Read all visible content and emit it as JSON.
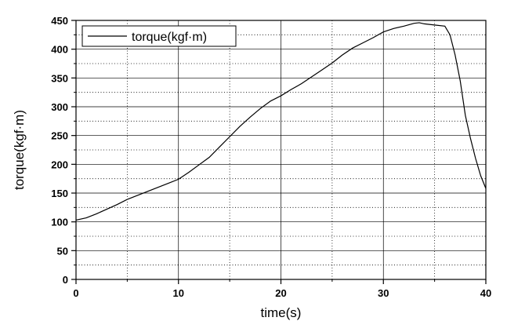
{
  "chart_data": {
    "type": "line",
    "xlabel": "time(s)",
    "ylabel": "torque(kgf·m)",
    "xlim": [
      0,
      40
    ],
    "ylim": [
      0,
      450
    ],
    "xticks": [
      0,
      10,
      20,
      30,
      40
    ],
    "yticks": [
      0,
      50,
      100,
      150,
      200,
      250,
      300,
      350,
      400,
      450
    ],
    "x_minor_ticks": [
      5,
      15,
      25,
      35
    ],
    "y_minor_ticks": [
      25,
      75,
      125,
      175,
      225,
      275,
      325,
      375,
      425
    ],
    "grid": {
      "major": "solid",
      "minor": "dotted"
    },
    "legend": {
      "position": "top-left"
    },
    "colors": {
      "line": "#000000",
      "major_grid": "#000000",
      "minor_grid": "#000000",
      "background": "#ffffff"
    },
    "series": [
      {
        "name": "torque(kgf·m)",
        "x": [
          0,
          1,
          2,
          3,
          4,
          5,
          6,
          7,
          8,
          9,
          10,
          11,
          12,
          13,
          14,
          15,
          16,
          17,
          18,
          19,
          20,
          21,
          22,
          23,
          24,
          25,
          26,
          27,
          28,
          29,
          30,
          31,
          32,
          33,
          33.5,
          34,
          35,
          36,
          36.5,
          37,
          37.5,
          38,
          38.5,
          39,
          39.5,
          40
        ],
        "y": [
          103,
          107,
          114,
          122,
          130,
          139,
          146,
          153,
          160,
          167,
          174,
          186,
          199,
          212,
          230,
          248,
          266,
          282,
          297,
          310,
          319,
          330,
          340,
          352,
          364,
          376,
          390,
          402,
          411,
          420,
          430,
          436,
          440,
          445,
          446,
          444,
          442,
          440,
          425,
          390,
          345,
          285,
          245,
          210,
          180,
          158
        ]
      }
    ]
  }
}
